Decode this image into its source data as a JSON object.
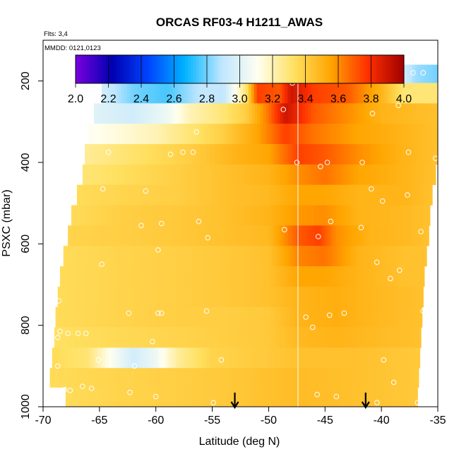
{
  "chart_data": {
    "type": "heatmap",
    "title": "ORCAS RF03-4 H1211_AWAS",
    "annotations": {
      "flights": "Flts: 3,4",
      "dates": "MMDD: 0121,0123"
    },
    "xlabel": "Latitude (deg N)",
    "ylabel": "PSXC (mbar)",
    "xlim": [
      -70,
      -35
    ],
    "ylim": [
      1000,
      100
    ],
    "x_ticks": [
      -70,
      -65,
      -60,
      -55,
      -50,
      -45,
      -40,
      -35
    ],
    "x_tick_labels": [
      "-70",
      "-65",
      "-60",
      "-55",
      "-50",
      "-45",
      "-40",
      "-35"
    ],
    "y_ticks": [
      200,
      400,
      600,
      800,
      1000
    ],
    "y_tick_labels": [
      "200",
      "400",
      "600",
      "800",
      "1000"
    ],
    "colorbar": {
      "range": [
        2.0,
        4.0
      ],
      "ticks": [
        2.0,
        2.2,
        2.4,
        2.6,
        2.8,
        3.0,
        3.2,
        3.4,
        3.6,
        3.8,
        4.0
      ],
      "tick_labels": [
        "2.0",
        "2.2",
        "2.4",
        "2.6",
        "2.8",
        "3.0",
        "3.2",
        "3.4",
        "3.6",
        "3.8",
        "4.0"
      ],
      "colors": [
        "#7a00e0",
        "#0000b0",
        "#0044ff",
        "#00b4ff",
        "#bfe6ff",
        "#fffff0",
        "#ffe060",
        "#ffa500",
        "#ff3000",
        "#a00000"
      ]
    },
    "divider_latitude": -47.4,
    "arrow_latitudes": [
      -53,
      -41.4
    ],
    "rows": [
      {
        "p": 180,
        "xmin": -64.5,
        "xmax": -35.0,
        "knots": [
          [
            -64.5,
            2.85
          ],
          [
            -63,
            2.7
          ],
          [
            -61,
            2.4
          ],
          [
            -59.5,
            2.2
          ],
          [
            -57.5,
            2.5
          ],
          [
            -56,
            3.0
          ],
          [
            -54.5,
            3.6
          ],
          [
            -52,
            3.6
          ],
          [
            -50,
            3.5
          ],
          [
            -48.5,
            3.6
          ],
          [
            -47.4,
            4.0
          ],
          [
            -45,
            3.75
          ],
          [
            -42,
            3.6
          ],
          [
            -40,
            3.4
          ],
          [
            -38.5,
            3.0
          ],
          [
            -37,
            2.85
          ],
          [
            -35,
            2.8
          ]
        ]
      },
      {
        "p": 230,
        "xmin": -64.8,
        "xmax": -35.0,
        "knots": [
          [
            -64.8,
            2.95
          ],
          [
            -62,
            2.8
          ],
          [
            -59,
            2.75
          ],
          [
            -56,
            2.9
          ],
          [
            -54,
            2.9
          ],
          [
            -52,
            3.3
          ],
          [
            -51,
            3.75
          ],
          [
            -49,
            3.7
          ],
          [
            -48,
            3.9
          ],
          [
            -46,
            3.75
          ],
          [
            -43,
            3.7
          ],
          [
            -40,
            3.5
          ],
          [
            -38,
            3.3
          ],
          [
            -35,
            3.3
          ]
        ]
      },
      {
        "p": 280,
        "xmin": -65.5,
        "xmax": -35.0,
        "knots": [
          [
            -65.5,
            3.0
          ],
          [
            -62,
            2.95
          ],
          [
            -59,
            3.05
          ],
          [
            -57,
            3.2
          ],
          [
            -54,
            3.3
          ],
          [
            -52,
            3.4
          ],
          [
            -50,
            3.65
          ],
          [
            -48.5,
            3.9
          ],
          [
            -46,
            3.7
          ],
          [
            -43,
            3.6
          ],
          [
            -40,
            3.5
          ],
          [
            -35,
            3.45
          ]
        ]
      },
      {
        "p": 330,
        "xmin": -66.0,
        "xmax": -35.0,
        "knots": [
          [
            -66,
            3.1
          ],
          [
            -63,
            3.15
          ],
          [
            -60,
            3.2
          ],
          [
            -57,
            3.3
          ],
          [
            -54,
            3.4
          ],
          [
            -51,
            3.55
          ],
          [
            -48.5,
            3.75
          ],
          [
            -46,
            3.65
          ],
          [
            -42,
            3.55
          ],
          [
            -38,
            3.5
          ],
          [
            -35,
            3.45
          ]
        ]
      },
      {
        "p": 380,
        "xmin": -66.3,
        "xmax": -35.0,
        "knots": [
          [
            -66.3,
            3.25
          ],
          [
            -63,
            3.3
          ],
          [
            -60,
            3.35
          ],
          [
            -57,
            3.4
          ],
          [
            -53,
            3.5
          ],
          [
            -50,
            3.55
          ],
          [
            -47.4,
            3.75
          ],
          [
            -45,
            3.7
          ],
          [
            -42,
            3.6
          ],
          [
            -38,
            3.5
          ],
          [
            -35,
            3.45
          ]
        ]
      },
      {
        "p": 430,
        "xmin": -66.5,
        "xmax": -35.2,
        "knots": [
          [
            -66.5,
            3.3
          ],
          [
            -62,
            3.35
          ],
          [
            -58,
            3.4
          ],
          [
            -54,
            3.45
          ],
          [
            -50,
            3.5
          ],
          [
            -47.4,
            3.6
          ],
          [
            -45,
            3.65
          ],
          [
            -42,
            3.55
          ],
          [
            -38,
            3.5
          ],
          [
            -35.2,
            3.45
          ]
        ]
      },
      {
        "p": 480,
        "xmin": -67.0,
        "xmax": -35.5,
        "knots": [
          [
            -67,
            3.35
          ],
          [
            -62,
            3.38
          ],
          [
            -58,
            3.4
          ],
          [
            -54,
            3.45
          ],
          [
            -50,
            3.48
          ],
          [
            -47.4,
            3.55
          ],
          [
            -45,
            3.55
          ],
          [
            -42,
            3.5
          ],
          [
            -38,
            3.5
          ],
          [
            -35.5,
            3.45
          ]
        ]
      },
      {
        "p": 530,
        "xmin": -67.5,
        "xmax": -35.7,
        "knots": [
          [
            -67.5,
            3.35
          ],
          [
            -63,
            3.4
          ],
          [
            -58,
            3.42
          ],
          [
            -54,
            3.45
          ],
          [
            -50,
            3.5
          ],
          [
            -47.4,
            3.58
          ],
          [
            -45,
            3.6
          ],
          [
            -42,
            3.5
          ],
          [
            -38,
            3.48
          ],
          [
            -35.7,
            3.45
          ]
        ]
      },
      {
        "p": 580,
        "xmin": -67.8,
        "xmax": -35.8,
        "knots": [
          [
            -67.8,
            3.38
          ],
          [
            -63,
            3.4
          ],
          [
            -58,
            3.42
          ],
          [
            -54,
            3.45
          ],
          [
            -50,
            3.48
          ],
          [
            -47.4,
            3.7
          ],
          [
            -45.5,
            3.75
          ],
          [
            -44,
            3.6
          ],
          [
            -41,
            3.5
          ],
          [
            -38,
            3.48
          ],
          [
            -35.8,
            3.45
          ]
        ]
      },
      {
        "p": 630,
        "xmin": -68.2,
        "xmax": -36.0,
        "knots": [
          [
            -68.2,
            3.35
          ],
          [
            -63,
            3.38
          ],
          [
            -58,
            3.4
          ],
          [
            -54,
            3.42
          ],
          [
            -50,
            3.45
          ],
          [
            -47.4,
            3.62
          ],
          [
            -45,
            3.65
          ],
          [
            -42,
            3.5
          ],
          [
            -38,
            3.45
          ],
          [
            -36,
            3.45
          ]
        ]
      },
      {
        "p": 680,
        "xmin": -68.5,
        "xmax": -36.2,
        "knots": [
          [
            -68.5,
            3.35
          ],
          [
            -63,
            3.38
          ],
          [
            -58,
            3.4
          ],
          [
            -54,
            3.42
          ],
          [
            -50,
            3.45
          ],
          [
            -47.4,
            3.55
          ],
          [
            -45,
            3.55
          ],
          [
            -42,
            3.5
          ],
          [
            -38,
            3.45
          ],
          [
            -36.2,
            3.45
          ]
        ]
      },
      {
        "p": 730,
        "xmin": -68.7,
        "xmax": -36.3,
        "knots": [
          [
            -68.7,
            3.35
          ],
          [
            -63,
            3.38
          ],
          [
            -58,
            3.4
          ],
          [
            -54,
            3.42
          ],
          [
            -50,
            3.45
          ],
          [
            -47.4,
            3.5
          ],
          [
            -44,
            3.52
          ],
          [
            -40,
            3.48
          ],
          [
            -36.3,
            3.45
          ]
        ]
      },
      {
        "p": 780,
        "xmin": -68.9,
        "xmax": -36.4,
        "knots": [
          [
            -68.9,
            3.35
          ],
          [
            -63,
            3.38
          ],
          [
            -58,
            3.4
          ],
          [
            -54,
            3.4
          ],
          [
            -50,
            3.42
          ],
          [
            -47.4,
            3.5
          ],
          [
            -44,
            3.52
          ],
          [
            -40,
            3.48
          ],
          [
            -36.4,
            3.45
          ]
        ]
      },
      {
        "p": 830,
        "xmin": -69.0,
        "xmax": -36.5,
        "knots": [
          [
            -69,
            3.33
          ],
          [
            -63,
            3.36
          ],
          [
            -58,
            3.38
          ],
          [
            -54,
            3.4
          ],
          [
            -50,
            3.42
          ],
          [
            -47.4,
            3.48
          ],
          [
            -44,
            3.5
          ],
          [
            -40,
            3.47
          ],
          [
            -36.5,
            3.45
          ]
        ]
      },
      {
        "p": 880,
        "xmin": -69.2,
        "xmax": -36.6,
        "knots": [
          [
            -69.2,
            3.35
          ],
          [
            -66,
            3.3
          ],
          [
            -64,
            3.1
          ],
          [
            -62,
            2.95
          ],
          [
            -60,
            3.05
          ],
          [
            -58,
            3.25
          ],
          [
            -55,
            3.38
          ],
          [
            -50,
            3.42
          ],
          [
            -47.4,
            3.45
          ],
          [
            -42,
            3.45
          ],
          [
            -36.6,
            3.42
          ]
        ]
      },
      {
        "p": 930,
        "xmin": -69.4,
        "xmax": -36.7,
        "knots": [
          [
            -69.4,
            3.35
          ],
          [
            -63,
            3.38
          ],
          [
            -58,
            3.4
          ],
          [
            -54,
            3.42
          ],
          [
            -50,
            3.45
          ],
          [
            -47.4,
            3.47
          ],
          [
            -42,
            3.45
          ],
          [
            -36.7,
            3.42
          ]
        ]
      },
      {
        "p": 975,
        "xmin": -68.0,
        "xmax": -36.8,
        "knots": [
          [
            -68,
            3.35
          ],
          [
            -63,
            3.38
          ],
          [
            -58,
            3.4
          ],
          [
            -54,
            3.42
          ],
          [
            -50,
            3.45
          ],
          [
            -47.4,
            3.47
          ],
          [
            -42,
            3.45
          ],
          [
            -36.8,
            3.42
          ]
        ]
      }
    ],
    "sample_points": [
      [
        -64.3,
        180
      ],
      [
        -58.5,
        180
      ],
      [
        -57.7,
        180
      ],
      [
        -56.5,
        180
      ],
      [
        -47.9,
        205
      ],
      [
        -41.5,
        195
      ],
      [
        -38.5,
        180
      ],
      [
        -37.2,
        180
      ],
      [
        -36.3,
        180
      ],
      [
        -48.7,
        270
      ],
      [
        -40.8,
        280
      ],
      [
        -38.5,
        260
      ],
      [
        -56.4,
        325
      ],
      [
        -64.2,
        375
      ],
      [
        -58.7,
        380
      ],
      [
        -57.6,
        375
      ],
      [
        -56.7,
        375
      ],
      [
        -47.5,
        400
      ],
      [
        -45.4,
        410
      ],
      [
        -44.8,
        400
      ],
      [
        -41.7,
        400
      ],
      [
        -37.6,
        375
      ],
      [
        -35.2,
        390
      ],
      [
        -64.7,
        465
      ],
      [
        -60.9,
        470
      ],
      [
        -40.9,
        465
      ],
      [
        -39.9,
        495
      ],
      [
        -37.7,
        480
      ],
      [
        -61.3,
        555
      ],
      [
        -59.5,
        550
      ],
      [
        -56.2,
        545
      ],
      [
        -48.6,
        565
      ],
      [
        -45.6,
        582
      ],
      [
        -44.5,
        545
      ],
      [
        -41.8,
        560
      ],
      [
        -36.5,
        570
      ],
      [
        -55.4,
        585
      ],
      [
        -59.8,
        615
      ],
      [
        -64.8,
        650
      ],
      [
        -40.4,
        645
      ],
      [
        -39.2,
        685
      ],
      [
        -38.4,
        665
      ],
      [
        -68.6,
        740
      ],
      [
        -62.4,
        770
      ],
      [
        -59.8,
        770
      ],
      [
        -59.5,
        770
      ],
      [
        -55.5,
        765
      ],
      [
        -44.6,
        775
      ],
      [
        -43.3,
        770
      ],
      [
        -46.7,
        780
      ],
      [
        -46.1,
        805
      ],
      [
        -68.5,
        815
      ],
      [
        -67.8,
        820
      ],
      [
        -66.9,
        820
      ],
      [
        -66.2,
        820
      ],
      [
        -68.7,
        830
      ],
      [
        -60.3,
        840
      ],
      [
        -36.3,
        765
      ],
      [
        -68.7,
        900
      ],
      [
        -65.1,
        885
      ],
      [
        -61.9,
        900
      ],
      [
        -59.5,
        890
      ],
      [
        -54.2,
        885
      ],
      [
        -39.8,
        885
      ],
      [
        -38.9,
        940
      ],
      [
        -69.3,
        960
      ],
      [
        -68.1,
        958
      ],
      [
        -67.6,
        960
      ],
      [
        -66.5,
        950
      ],
      [
        -65.7,
        955
      ],
      [
        -62.3,
        965
      ],
      [
        -60.0,
        975
      ],
      [
        -54.9,
        990
      ],
      [
        -45.7,
        970
      ],
      [
        -44.0,
        975
      ],
      [
        -40.4,
        990
      ],
      [
        -36.8,
        990
      ]
    ]
  }
}
